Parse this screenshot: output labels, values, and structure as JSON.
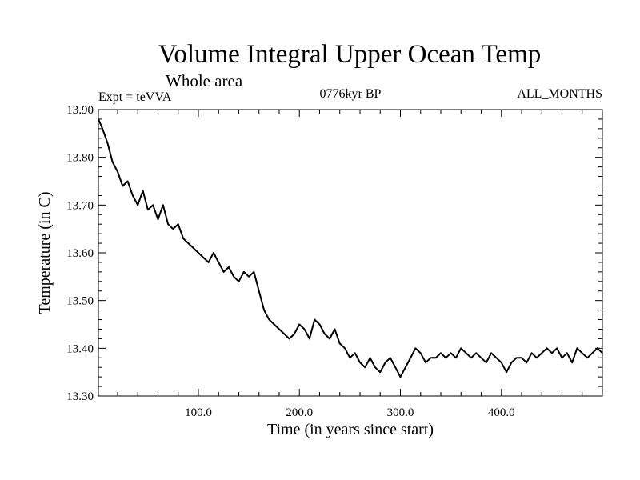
{
  "chart_data": {
    "type": "line",
    "title": "Volume Integral Upper Ocean Temp",
    "subtitle": "Whole area",
    "annotations": {
      "left": "Expt = teVVA",
      "center": "0776kyr BP",
      "right": "ALL_MONTHS"
    },
    "xlabel": "Time (in years since start)",
    "ylabel": "Temperature (in C)",
    "xlim": [
      1,
      500
    ],
    "ylim": [
      13.3,
      13.9
    ],
    "x_ticks": [
      100,
      200,
      300,
      400
    ],
    "x_tick_labels": [
      "100.0",
      "200.0",
      "300.0",
      "400.0"
    ],
    "y_ticks": [
      13.3,
      13.4,
      13.5,
      13.6,
      13.7,
      13.8,
      13.9
    ],
    "y_tick_labels": [
      "13.30",
      "13.40",
      "13.50",
      "13.60",
      "13.70",
      "13.80",
      "13.90"
    ],
    "grid": false,
    "legend": "none",
    "series": [
      {
        "color": "#000000",
        "x": [
          1,
          5,
          10,
          15,
          20,
          25,
          30,
          35,
          40,
          45,
          50,
          55,
          60,
          65,
          70,
          75,
          80,
          85,
          90,
          95,
          100,
          105,
          110,
          115,
          120,
          125,
          130,
          135,
          140,
          145,
          150,
          155,
          160,
          165,
          170,
          175,
          180,
          185,
          190,
          195,
          200,
          205,
          210,
          215,
          220,
          225,
          230,
          235,
          240,
          245,
          250,
          255,
          260,
          265,
          270,
          275,
          280,
          285,
          290,
          295,
          300,
          305,
          310,
          315,
          320,
          325,
          330,
          335,
          340,
          345,
          350,
          355,
          360,
          365,
          370,
          375,
          380,
          385,
          390,
          395,
          400,
          405,
          410,
          415,
          420,
          425,
          430,
          435,
          440,
          445,
          450,
          455,
          460,
          465,
          470,
          475,
          480,
          485,
          490,
          495,
          500
        ],
        "values": [
          13.88,
          13.86,
          13.83,
          13.79,
          13.77,
          13.74,
          13.75,
          13.72,
          13.7,
          13.73,
          13.69,
          13.7,
          13.67,
          13.7,
          13.66,
          13.65,
          13.66,
          13.63,
          13.62,
          13.61,
          13.6,
          13.59,
          13.58,
          13.6,
          13.58,
          13.56,
          13.57,
          13.55,
          13.54,
          13.56,
          13.55,
          13.56,
          13.52,
          13.48,
          13.46,
          13.45,
          13.44,
          13.43,
          13.42,
          13.43,
          13.45,
          13.44,
          13.42,
          13.46,
          13.45,
          13.43,
          13.42,
          13.44,
          13.41,
          13.4,
          13.38,
          13.39,
          13.37,
          13.36,
          13.38,
          13.36,
          13.35,
          13.37,
          13.38,
          13.36,
          13.34,
          13.36,
          13.38,
          13.4,
          13.39,
          13.37,
          13.38,
          13.38,
          13.39,
          13.38,
          13.39,
          13.38,
          13.4,
          13.39,
          13.38,
          13.39,
          13.38,
          13.37,
          13.39,
          13.38,
          13.37,
          13.35,
          13.37,
          13.38,
          13.38,
          13.37,
          13.39,
          13.38,
          13.39,
          13.4,
          13.39,
          13.4,
          13.38,
          13.39,
          13.37,
          13.4,
          13.39,
          13.38,
          13.39,
          13.4,
          13.39
        ]
      }
    ]
  }
}
